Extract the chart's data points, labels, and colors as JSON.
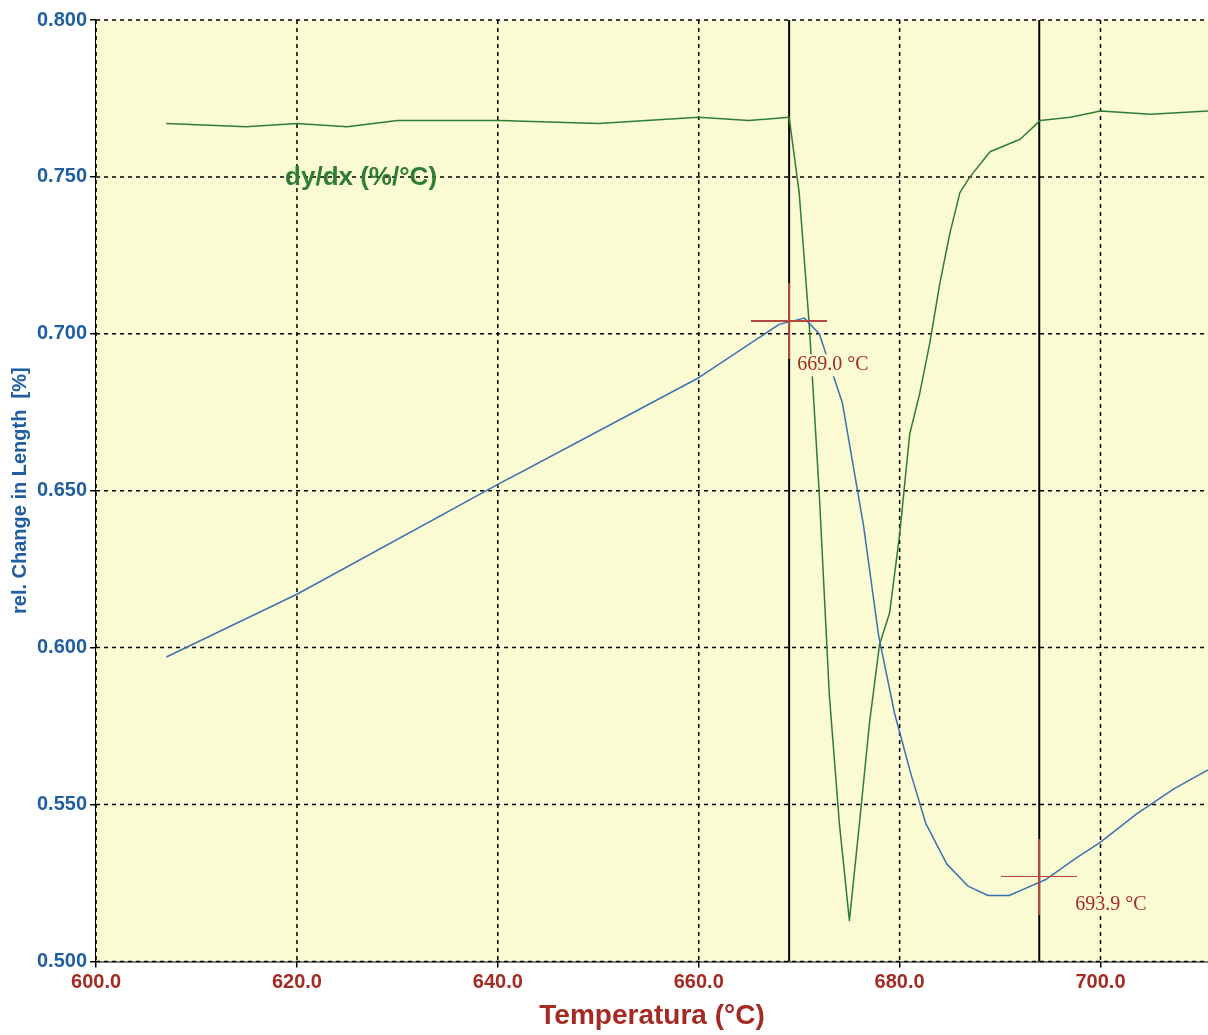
{
  "chart_data": {
    "type": "line",
    "xlabel": "Temperatura (°C)",
    "ylabel": "rel. Change in Length  [%]",
    "xlim": [
      600,
      710.7
    ],
    "ylim": [
      0.5,
      0.8
    ],
    "xticks": [
      {
        "value": 600,
        "label": "600.0"
      },
      {
        "value": 620,
        "label": "620.0"
      },
      {
        "value": 640,
        "label": "640.0"
      },
      {
        "value": 660,
        "label": "660.0"
      },
      {
        "value": 680,
        "label": "680.0"
      },
      {
        "value": 700,
        "label": "700.0"
      }
    ],
    "yticks": [
      {
        "value": 0.5,
        "label": "0.500"
      },
      {
        "value": 0.55,
        "label": "0.550"
      },
      {
        "value": 0.6,
        "label": "0.600"
      },
      {
        "value": 0.65,
        "label": "0.650"
      },
      {
        "value": 0.7,
        "label": "0.700"
      },
      {
        "value": 0.75,
        "label": "0.750"
      },
      {
        "value": 0.8,
        "label": "0.800"
      }
    ],
    "grid": true,
    "legend": false,
    "marker": "none",
    "line_style": "solid",
    "series": [
      {
        "color": "#3a72b0",
        "x": [
          607,
          620,
          640,
          660,
          668,
          670.5,
          672,
          674.3,
          676.4,
          677.9,
          679.5,
          681.1,
          682.6,
          684.7,
          686.8,
          688.8,
          690.9,
          694.5,
          697.6,
          700,
          703.6,
          707.3,
          710.7
        ],
        "values": [
          0.597,
          0.617,
          0.652,
          0.686,
          0.703,
          0.705,
          0.7,
          0.678,
          0.639,
          0.604,
          0.579,
          0.56,
          0.544,
          0.531,
          0.524,
          0.521,
          0.521,
          0.526,
          0.533,
          0.538,
          0.547,
          0.555,
          0.561
        ]
      },
      {
        "name": "dy/dx (%/°C)",
        "color": "#2e7d32",
        "x": [
          607,
          615,
          620,
          625,
          630,
          640,
          650,
          660,
          665,
          669,
          670,
          671,
          672,
          673,
          674,
          675,
          676,
          677,
          678,
          679,
          680,
          681,
          682,
          683,
          684,
          685,
          686,
          687,
          689,
          692,
          694,
          697,
          700,
          705,
          710.7
        ],
        "values": [
          0.767,
          0.766,
          0.767,
          0.766,
          0.768,
          0.768,
          0.767,
          0.769,
          0.768,
          0.769,
          0.745,
          0.703,
          0.649,
          0.585,
          0.544,
          0.513,
          0.544,
          0.576,
          0.601,
          0.611,
          0.636,
          0.668,
          0.681,
          0.697,
          0.716,
          0.732,
          0.745,
          0.75,
          0.758,
          0.762,
          0.768,
          0.769,
          0.771,
          0.77,
          0.771
        ]
      }
    ],
    "ref_lines": [
      {
        "axis": "x",
        "value": 669.0,
        "color": "#000000"
      },
      {
        "axis": "x",
        "value": 693.9,
        "color": "#000000"
      }
    ],
    "annotations": [
      {
        "text": "669.0 °C",
        "x": 669.0,
        "y": 0.704
      },
      {
        "text": "693.9 °C",
        "x": 693.9,
        "y": 0.527
      }
    ]
  }
}
